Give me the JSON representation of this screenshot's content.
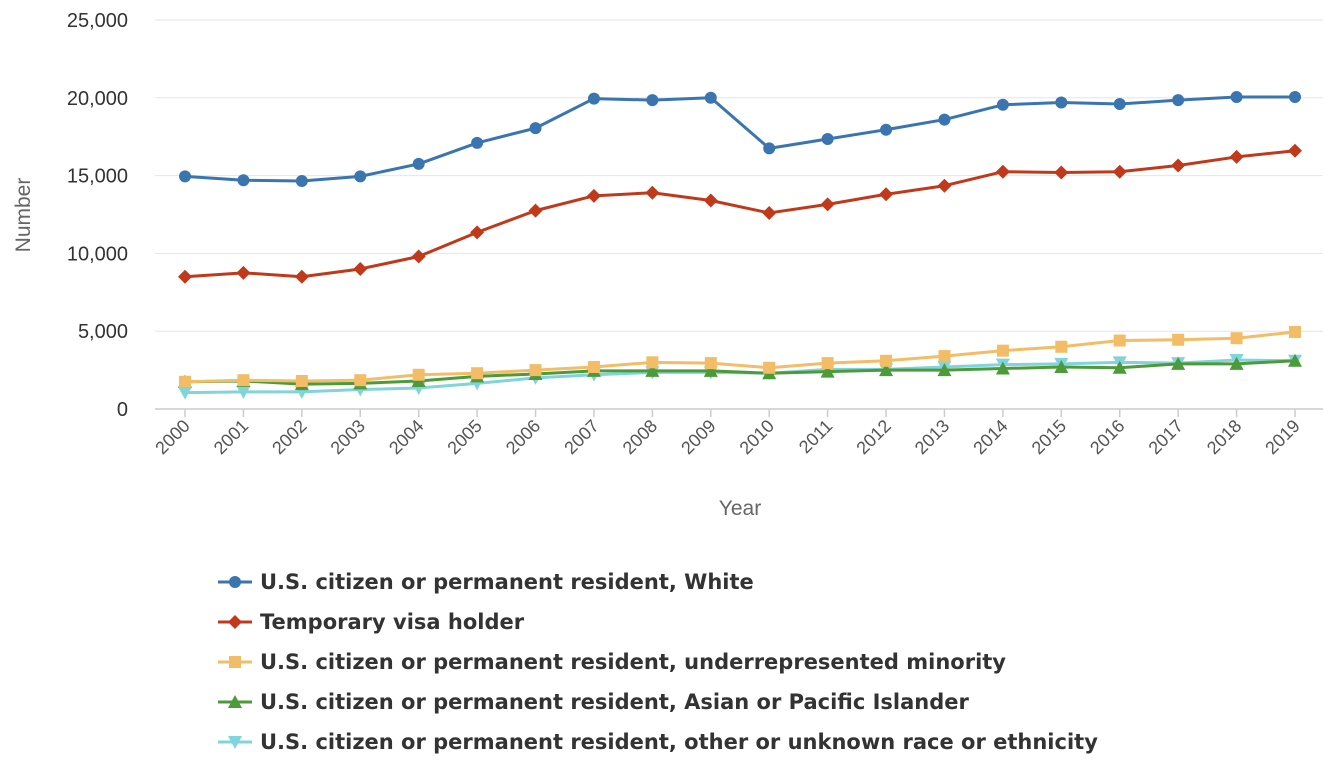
{
  "chart_data": {
    "type": "line",
    "title": "",
    "xlabel": "Year",
    "ylabel": "Number",
    "x": [
      "2000",
      "2001",
      "2002",
      "2003",
      "2004",
      "2005",
      "2006",
      "2007",
      "2008",
      "2009",
      "2010",
      "2011",
      "2012",
      "2013",
      "2014",
      "2015",
      "2016",
      "2017",
      "2018",
      "2019"
    ],
    "ylim": [
      0,
      25000
    ],
    "yticks": [
      0,
      5000,
      10000,
      15000,
      20000,
      25000
    ],
    "ytick_labels": [
      "0",
      "5,000",
      "10,000",
      "15,000",
      "20,000",
      "25,000"
    ],
    "grid": true,
    "legend_position": "bottom",
    "series": [
      {
        "name": "U.S. citizen or permanent resident, White",
        "color": "#3a75b0",
        "marker": "circle",
        "values": [
          14950,
          14700,
          14650,
          14950,
          15750,
          17100,
          18050,
          19950,
          19850,
          20000,
          16750,
          17350,
          17950,
          18600,
          19550,
          19700,
          19600,
          19850,
          20050,
          20050
        ]
      },
      {
        "name": "Temporary visa holder",
        "color": "#c0391b",
        "marker": "diamond",
        "values": [
          8500,
          8750,
          8500,
          9000,
          9800,
          11350,
          12750,
          13700,
          13900,
          13400,
          12600,
          13150,
          13800,
          14350,
          15250,
          15200,
          15250,
          15650,
          16200,
          16600
        ]
      },
      {
        "name": "U.S. citizen or permanent resident, underrepresented minority",
        "color": "#f2bd66",
        "marker": "square",
        "values": [
          1750,
          1850,
          1800,
          1850,
          2200,
          2300,
          2500,
          2700,
          3000,
          2950,
          2650,
          2950,
          3100,
          3400,
          3750,
          4000,
          4400,
          4450,
          4550,
          4950
        ]
      },
      {
        "name": "U.S. citizen or permanent resident, Asian or Pacific Islander",
        "color": "#4c9a3a",
        "marker": "triangle-up",
        "values": [
          1750,
          1800,
          1600,
          1650,
          1800,
          2100,
          2250,
          2450,
          2450,
          2450,
          2300,
          2400,
          2500,
          2500,
          2600,
          2700,
          2650,
          2900,
          2900,
          3100
        ]
      },
      {
        "name": "U.S. citizen or permanent resident, other or unknown race or ethnicity",
        "color": "#80d4dc",
        "marker": "triangle-down",
        "values": [
          1050,
          1100,
          1100,
          1250,
          1350,
          1650,
          2000,
          2200,
          2350,
          2350,
          2300,
          2550,
          2550,
          2700,
          2850,
          2900,
          3000,
          2950,
          3150,
          3100
        ]
      }
    ]
  }
}
